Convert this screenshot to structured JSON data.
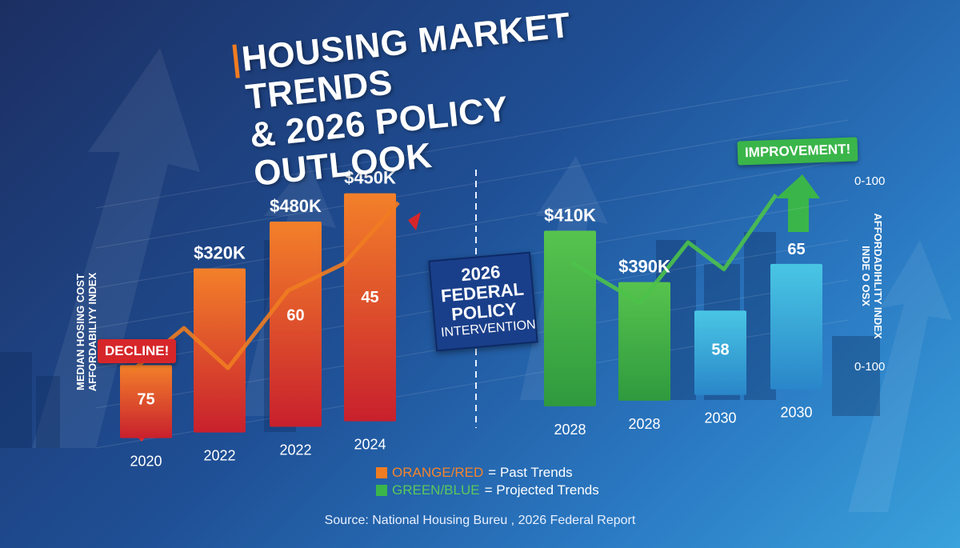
{
  "title": {
    "line1": "HOUSING MARKET TRENDS",
    "line2": "& 2026 POLICY OUTLOOK"
  },
  "annotations": {
    "decline": "DECLINE!",
    "improvement": "IMPROVEMENT!",
    "policy_line1": "2026",
    "policy_line2": "FEDERAL",
    "policy_line3": "POLICY",
    "policy_line4": "INTERVENTION"
  },
  "axes": {
    "left_line1": "MEDIAN HOSING COST",
    "left_line2": "AFFORDABILIYY INDEX",
    "right_line1": "AFFORDADIHLITY INDEX",
    "right_line2": "INDE O OSX",
    "right_tick_top": "0-100",
    "right_tick_bottom": "0-100"
  },
  "legend": {
    "past_key": "ORANGE/RED",
    "past_text": " = Past Trends",
    "projected_key": "GREEN/BLUE",
    "projected_text": " = Projected Trends"
  },
  "source": "Source: National Housing Bureu , 2026 Federal Report",
  "colors": {
    "past_top": "#f3802a",
    "past_bottom": "#c8202d",
    "green_top": "#57c34e",
    "green_bottom": "#2f9a3e",
    "blue_top": "#49c6e4",
    "blue_bottom": "#2a86c9",
    "accent_orange": "#f07c21",
    "decline_red": "#d7262a",
    "improve_green": "#3ab54a"
  },
  "chart_data": {
    "type": "bar",
    "categories": [
      "2020",
      "2022",
      "2022",
      "2024",
      "2028",
      "2028",
      "2030",
      "2030"
    ],
    "series": [
      {
        "name": "Median Housing Cost",
        "values": [
          null,
          320,
          480,
          450,
          410,
          390,
          null,
          null
        ],
        "labels": [
          "",
          "$320K",
          "$480K",
          "$450K",
          "$410K",
          "$390K",
          "",
          ""
        ]
      },
      {
        "name": "Affordability Index",
        "values": [
          75,
          null,
          60,
          45,
          null,
          null,
          58,
          65
        ],
        "labels": [
          "75",
          "",
          "60",
          "45",
          "",
          "",
          "58",
          "65"
        ]
      }
    ],
    "past_count": 4,
    "projected_count": 4,
    "bar_heights_relative": [
      0.32,
      0.72,
      0.9,
      1.0,
      0.77,
      0.52,
      0.37,
      0.55
    ],
    "line_values_relative": [
      0.3,
      0.47,
      0.28,
      0.6,
      0.7,
      0.95,
      0.63,
      0.43,
      0.68,
      0.55,
      0.86
    ],
    "ylim": [
      0,
      100
    ]
  }
}
